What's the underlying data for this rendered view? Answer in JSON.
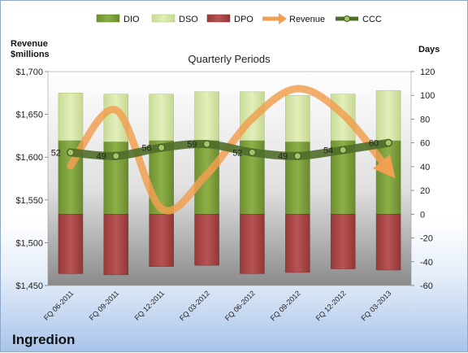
{
  "company": "Ingredion",
  "chart_data": {
    "type": "bar",
    "title": "Quarterly Periods",
    "ylabel_left": "Revenue $millions",
    "ylabel_right": "Days",
    "categories": [
      "FQ 06-2011",
      "FQ 09-2011",
      "FQ 12-2011",
      "FQ 03-2012",
      "FQ 06-2012",
      "FQ 09-2012",
      "FQ 12-2012",
      "FQ 03-2013"
    ],
    "left_axis": {
      "min": 1450,
      "max": 1700,
      "step": 50,
      "tick_labels": [
        "$1,450",
        "$1,500",
        "$1,550",
        "$1,600",
        "$1,650",
        "$1,700"
      ]
    },
    "right_axis": {
      "min": -60,
      "max": 120,
      "step": 20,
      "tick_labels": [
        "-60",
        "-40",
        "-20",
        "0",
        "20",
        "40",
        "60",
        "80",
        "100",
        "120"
      ]
    },
    "series": [
      {
        "name": "DIO",
        "axis": "right",
        "kind": "stacked-bar",
        "color": "#7a9a35",
        "values": [
          62,
          61,
          62,
          62,
          62,
          61,
          62,
          62
        ]
      },
      {
        "name": "DSO",
        "axis": "right",
        "kind": "stacked-bar",
        "color": "#d3e5a0",
        "values": [
          40,
          40,
          39,
          41,
          41,
          39,
          39,
          42
        ]
      },
      {
        "name": "DPO",
        "axis": "right",
        "kind": "negative-bar",
        "color": "#a84444",
        "values": [
          -50,
          -51,
          -44,
          -43,
          -50,
          -49,
          -46,
          -47
        ]
      },
      {
        "name": "Revenue",
        "axis": "left",
        "kind": "line",
        "color": "#f0a050",
        "values": [
          1590,
          1655,
          1540,
          1580,
          1645,
          1680,
          1650,
          1585
        ]
      },
      {
        "name": "CCC",
        "axis": "right",
        "kind": "line",
        "color": "#4f6e2a",
        "values": [
          52,
          49,
          56,
          59,
          52,
          49,
          54,
          60
        ],
        "labels": [
          "52",
          "49",
          "56",
          "59",
          "52",
          "49",
          "54",
          "60"
        ]
      }
    ],
    "legend": [
      "DIO",
      "DSO",
      "DPO",
      "Revenue",
      "CCC"
    ],
    "legend_position": "top",
    "grid": false
  }
}
